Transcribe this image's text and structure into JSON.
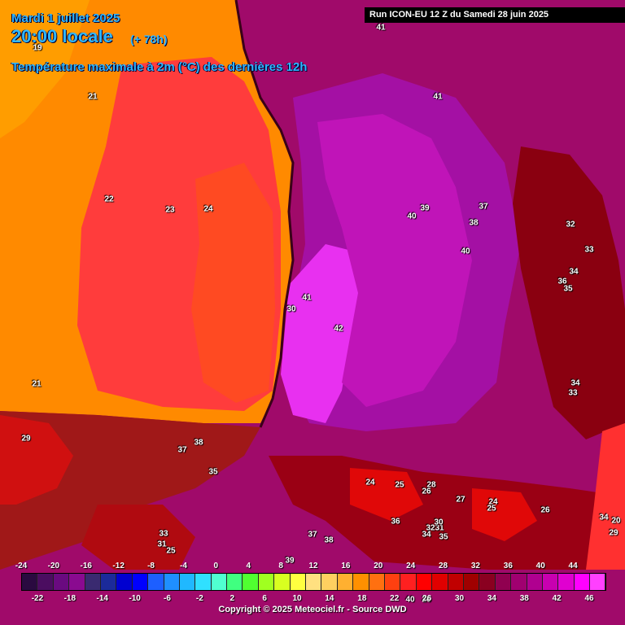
{
  "header": {
    "date": "Mardi 1 juillet 2025",
    "time": "20:00 locale",
    "lead": "(+ 78h)",
    "parameter": "Température maximale à 2m (°C) des dernières 12h"
  },
  "run_info": "Run ICON-EU 12 Z du Samedi 28 juin 2025",
  "copyright": "Copyright © 2025 Meteociel.fr - Source DWD",
  "legend": {
    "unit": "°C",
    "colors": [
      "#2a0a40",
      "#4b0d60",
      "#6a0a80",
      "#8a0a90",
      "#3a2a70",
      "#1b2a9a",
      "#0000d0",
      "#0000ff",
      "#1d5fff",
      "#1f8fff",
      "#20b8ff",
      "#30e0ff",
      "#50ffd0",
      "#40ff80",
      "#50ff30",
      "#a0ff20",
      "#d8ff20",
      "#ffff40",
      "#ffe080",
      "#ffd060",
      "#ffb030",
      "#ff9000",
      "#ff7010",
      "#ff4010",
      "#ff2020",
      "#ff0000",
      "#e00000",
      "#c00000",
      "#a00000",
      "#8a0020",
      "#900050",
      "#a00070",
      "#b00090",
      "#c800b0",
      "#e000d0",
      "#ff00ff",
      "#ff40ff"
    ],
    "top_ticks": [
      "-24",
      "-20",
      "-16",
      "-12",
      "-8",
      "-4",
      "0",
      "4",
      "8",
      "12",
      "16",
      "20",
      "24",
      "28",
      "32",
      "36",
      "40",
      "44"
    ],
    "bottom_ticks": [
      "-22",
      "-18",
      "-14",
      "-10",
      "-6",
      "-2",
      "2",
      "6",
      "10",
      "14",
      "18",
      "22",
      "26",
      "30",
      "34",
      "38",
      "42",
      "46"
    ]
  },
  "colors": {
    "sea_far": "#ff8a00",
    "sea_mid": "#ff6a1a",
    "sea_near": "#ff3c3c",
    "land_hot": "#a00a6a",
    "land_very_hot": "#c010b0",
    "land_extreme": "#e830f0",
    "mountains": "#9a0014",
    "accent_label": "#2fb6ff"
  },
  "map_values": [
    {
      "t": "19"
    },
    {
      "t": "21"
    },
    {
      "t": "22"
    },
    {
      "t": "23"
    },
    {
      "t": "24"
    },
    {
      "t": "21"
    },
    {
      "t": "41"
    },
    {
      "t": "41"
    },
    {
      "t": "39"
    },
    {
      "t": "40"
    },
    {
      "t": "37"
    },
    {
      "t": "38"
    },
    {
      "t": "40"
    },
    {
      "t": "32"
    },
    {
      "t": "33"
    },
    {
      "t": "34"
    },
    {
      "t": "36"
    },
    {
      "t": "35"
    },
    {
      "t": "34"
    },
    {
      "t": "33"
    },
    {
      "t": "41"
    },
    {
      "t": "42"
    },
    {
      "t": "30"
    },
    {
      "t": "38"
    },
    {
      "t": "37"
    },
    {
      "t": "35"
    },
    {
      "t": "29"
    },
    {
      "t": "24"
    },
    {
      "t": "25"
    },
    {
      "t": "28"
    },
    {
      "t": "26"
    },
    {
      "t": "27"
    },
    {
      "t": "24"
    },
    {
      "t": "25"
    },
    {
      "t": "36"
    },
    {
      "t": "32"
    },
    {
      "t": "31"
    },
    {
      "t": "30"
    },
    {
      "t": "34"
    },
    {
      "t": "35"
    },
    {
      "t": "37"
    },
    {
      "t": "38"
    },
    {
      "t": "39"
    },
    {
      "t": "33"
    },
    {
      "t": "31"
    },
    {
      "t": "25"
    },
    {
      "t": "26"
    },
    {
      "t": "34"
    },
    {
      "t": "20"
    },
    {
      "t": "29"
    },
    {
      "t": "40"
    },
    {
      "t": "26"
    }
  ]
}
